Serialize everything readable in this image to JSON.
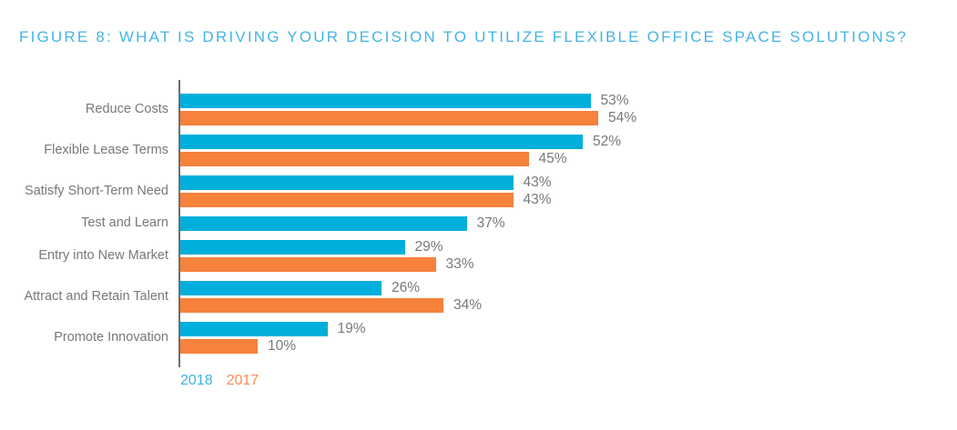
{
  "title": "FIGURE 8: WHAT IS DRIVING YOUR DECISION TO UTILIZE FLEXIBLE OFFICE SPACE SOLUTIONS?",
  "colors": {
    "bar_blue_2018": "#00AFDB",
    "bar_orange_2017": "#F6823C",
    "title_blue": "#45B4E6",
    "label_gray": "#77787B",
    "axis_gray": "#6D6E71",
    "legend_blue": "#3BB1E0",
    "legend_orange": "#F78D57"
  },
  "legend": {
    "items": [
      {
        "label": "2018",
        "color": "#3BB1E0"
      },
      {
        "label": "2017",
        "color": "#F78D57"
      }
    ]
  },
  "chart_data": {
    "type": "bar",
    "orientation": "horizontal",
    "title": "FIGURE 8: WHAT IS DRIVING YOUR DECISION TO UTILIZE FLEXIBLE OFFICE SPACE SOLUTIONS?",
    "categories": [
      "Reduce Costs",
      "Flexible Lease Terms",
      "Satisfy Short-Term Need",
      "Test and Learn",
      "Entry into New Market",
      "Attract and Retain Talent",
      "Promote Innovation"
    ],
    "series": [
      {
        "name": "2018",
        "color": "#00AFDB",
        "values": [
          53,
          52,
          43,
          37,
          29,
          26,
          19
        ]
      },
      {
        "name": "2017",
        "color": "#F6823C",
        "values": [
          54,
          45,
          43,
          null,
          33,
          34,
          10
        ]
      }
    ],
    "value_suffix": "%",
    "xlim": [
      0,
      60
    ],
    "grid": false,
    "legend_position": "bottom-left",
    "value_labels": true
  }
}
